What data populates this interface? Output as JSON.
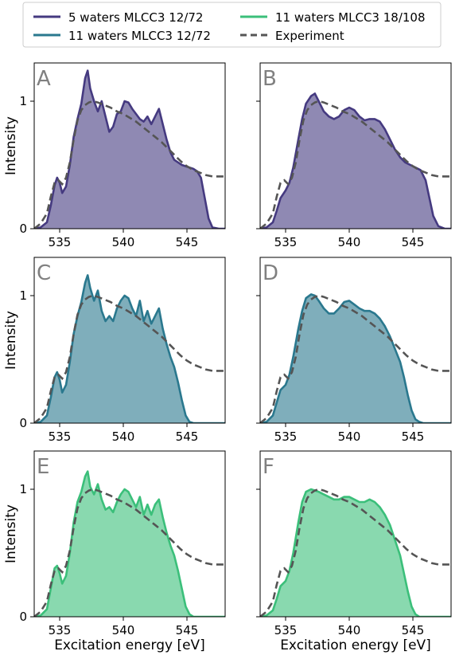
{
  "chart_data": {
    "type": "area",
    "legend": {
      "placement": "top",
      "entries": [
        {
          "label": "5 waters MLCC3 12/72",
          "color": "#453a80",
          "style": "solid"
        },
        {
          "label": "11 waters MLCC3 12/72",
          "color": "#2a788e",
          "style": "solid"
        },
        {
          "label": "11 waters MLCC3 18/108",
          "color": "#3bbf7a",
          "style": "solid"
        },
        {
          "label": "Experiment",
          "color": "#555555",
          "style": "dashed"
        }
      ]
    },
    "xlabel": "Excitation energy [eV]",
    "ylabel": "Intensity",
    "xlim": [
      533,
      548
    ],
    "ylim": [
      0,
      1.3
    ],
    "xticks": [
      "535",
      "540",
      "545"
    ],
    "yticks": [
      "0",
      "1"
    ],
    "grid": false,
    "experiment": {
      "x": [
        533,
        533.5,
        534,
        534.3,
        534.6,
        534.9,
        535.2,
        535.5,
        535.8,
        536.1,
        536.4,
        536.7,
        537,
        537.3,
        537.6,
        538,
        538.5,
        539,
        539.5,
        540,
        540.5,
        541,
        541.5,
        542,
        542.5,
        543,
        543.5,
        544,
        544.5,
        545,
        545.5,
        546,
        546.5,
        547,
        547.5,
        548
      ],
      "y": [
        0,
        0.04,
        0.12,
        0.25,
        0.36,
        0.38,
        0.35,
        0.4,
        0.52,
        0.7,
        0.85,
        0.93,
        0.97,
        0.99,
        1.0,
        0.99,
        0.97,
        0.95,
        0.92,
        0.9,
        0.87,
        0.84,
        0.8,
        0.76,
        0.72,
        0.68,
        0.63,
        0.58,
        0.53,
        0.49,
        0.46,
        0.44,
        0.42,
        0.41,
        0.41,
        0.41
      ]
    },
    "panels": [
      {
        "label": "A",
        "color": "#453a80",
        "show_ylabel": true,
        "show_xlabel": false,
        "x": [
          533,
          533.5,
          534,
          534.3,
          534.6,
          534.8,
          535,
          535.2,
          535.5,
          535.8,
          536.1,
          536.4,
          536.7,
          537,
          537.2,
          537.4,
          537.7,
          538,
          538.3,
          538.6,
          538.9,
          539.2,
          539.5,
          539.8,
          540.1,
          540.4,
          540.7,
          541,
          541.3,
          541.6,
          541.9,
          542.2,
          542.5,
          542.8,
          543.1,
          543.4,
          543.7,
          544,
          544.3,
          544.6,
          544.9,
          545.2,
          545.5,
          545.8,
          546.1,
          546.4,
          546.7,
          547,
          547.5,
          548
        ],
        "y": [
          0,
          0.01,
          0.05,
          0.18,
          0.34,
          0.4,
          0.36,
          0.28,
          0.33,
          0.5,
          0.72,
          0.86,
          0.98,
          1.18,
          1.24,
          1.1,
          1.0,
          0.92,
          1.0,
          0.88,
          0.76,
          0.8,
          0.9,
          0.92,
          1.0,
          0.99,
          0.94,
          0.9,
          0.86,
          0.84,
          0.88,
          0.82,
          0.88,
          0.94,
          0.82,
          0.7,
          0.6,
          0.54,
          0.52,
          0.5,
          0.49,
          0.48,
          0.47,
          0.45,
          0.4,
          0.24,
          0.08,
          0.01,
          0,
          0
        ]
      },
      {
        "label": "B",
        "color": "#453a80",
        "show_ylabel": false,
        "show_xlabel": false,
        "x": [
          533,
          533.5,
          534,
          534.3,
          534.6,
          535,
          535.3,
          535.6,
          536,
          536.3,
          536.6,
          537,
          537.3,
          537.6,
          538,
          538.4,
          538.8,
          539.2,
          539.6,
          540,
          540.4,
          540.8,
          541.2,
          541.6,
          542,
          542.4,
          542.8,
          543.2,
          543.6,
          544,
          544.4,
          544.8,
          545.2,
          545.6,
          546,
          546.3,
          546.6,
          547,
          547.5,
          548
        ],
        "y": [
          0,
          0.01,
          0.05,
          0.14,
          0.24,
          0.3,
          0.36,
          0.48,
          0.7,
          0.86,
          0.98,
          1.04,
          1.06,
          1.0,
          0.92,
          0.88,
          0.86,
          0.88,
          0.93,
          0.95,
          0.93,
          0.88,
          0.85,
          0.86,
          0.86,
          0.84,
          0.78,
          0.7,
          0.62,
          0.56,
          0.52,
          0.5,
          0.48,
          0.46,
          0.38,
          0.24,
          0.1,
          0.02,
          0,
          0
        ]
      },
      {
        "label": "C",
        "color": "#2a788e",
        "show_ylabel": true,
        "show_xlabel": false,
        "x": [
          533,
          533.5,
          534,
          534.3,
          534.6,
          534.8,
          535,
          535.2,
          535.5,
          535.8,
          536.1,
          536.4,
          536.7,
          537,
          537.2,
          537.4,
          537.7,
          538,
          538.3,
          538.6,
          538.9,
          539.2,
          539.5,
          539.8,
          540.1,
          540.4,
          540.7,
          541,
          541.3,
          541.6,
          541.9,
          542.2,
          542.5,
          542.8,
          543.1,
          543.4,
          543.7,
          544,
          544.3,
          544.6,
          544.9,
          545.2,
          545.5,
          545.8,
          546.1,
          546.4,
          546.7,
          547,
          547.5,
          548
        ],
        "y": [
          0,
          0.01,
          0.06,
          0.2,
          0.36,
          0.4,
          0.34,
          0.24,
          0.3,
          0.48,
          0.7,
          0.84,
          0.95,
          1.1,
          1.16,
          1.06,
          0.96,
          1.04,
          0.88,
          0.8,
          0.84,
          0.8,
          0.9,
          0.96,
          1.0,
          0.98,
          0.9,
          0.84,
          0.96,
          0.8,
          0.88,
          0.78,
          0.84,
          0.9,
          0.74,
          0.62,
          0.52,
          0.44,
          0.32,
          0.18,
          0.06,
          0.01,
          0,
          0,
          0,
          0,
          0,
          0,
          0,
          0
        ]
      },
      {
        "label": "D",
        "color": "#2a788e",
        "show_ylabel": false,
        "show_xlabel": false,
        "x": [
          533,
          533.5,
          534,
          534.3,
          534.6,
          535,
          535.3,
          535.6,
          536,
          536.3,
          536.6,
          537,
          537.3,
          537.6,
          538,
          538.4,
          538.8,
          539.2,
          539.6,
          540,
          540.4,
          540.8,
          541.2,
          541.6,
          542,
          542.4,
          542.8,
          543.2,
          543.6,
          544,
          544.3,
          544.6,
          544.9,
          545.2,
          545.5,
          545.8,
          546.1,
          546.5,
          547,
          548
        ],
        "y": [
          0,
          0.01,
          0.06,
          0.16,
          0.26,
          0.3,
          0.38,
          0.52,
          0.74,
          0.88,
          0.98,
          1.01,
          1.0,
          0.96,
          0.9,
          0.86,
          0.86,
          0.9,
          0.95,
          0.96,
          0.93,
          0.9,
          0.88,
          0.88,
          0.86,
          0.82,
          0.76,
          0.68,
          0.58,
          0.48,
          0.36,
          0.22,
          0.1,
          0.03,
          0.01,
          0,
          0,
          0,
          0,
          0
        ]
      },
      {
        "label": "E",
        "color": "#3bbf7a",
        "show_ylabel": true,
        "show_xlabel": true,
        "x": [
          533,
          533.5,
          534,
          534.3,
          534.6,
          534.8,
          535,
          535.2,
          535.5,
          535.8,
          536.1,
          536.4,
          536.7,
          537,
          537.2,
          537.4,
          537.7,
          538,
          538.3,
          538.6,
          538.9,
          539.2,
          539.5,
          539.8,
          540.1,
          540.4,
          540.7,
          541,
          541.3,
          541.6,
          541.9,
          542.2,
          542.5,
          542.8,
          543.1,
          543.4,
          543.7,
          544,
          544.3,
          544.6,
          544.9,
          545.2,
          545.5,
          545.8,
          546.1,
          546.4,
          546.7,
          547,
          547.5,
          548
        ],
        "y": [
          0,
          0.01,
          0.06,
          0.22,
          0.38,
          0.4,
          0.34,
          0.26,
          0.32,
          0.5,
          0.74,
          0.9,
          0.98,
          1.1,
          1.14,
          1.02,
          0.96,
          1.04,
          0.92,
          0.84,
          0.86,
          0.82,
          0.9,
          0.96,
          1.0,
          0.98,
          0.92,
          0.86,
          0.94,
          0.8,
          0.88,
          0.8,
          0.88,
          0.92,
          0.78,
          0.66,
          0.56,
          0.48,
          0.36,
          0.22,
          0.08,
          0.02,
          0,
          0,
          0,
          0,
          0,
          0,
          0,
          0
        ]
      },
      {
        "label": "F",
        "color": "#3bbf7a",
        "show_ylabel": false,
        "show_xlabel": true,
        "x": [
          533,
          533.5,
          534,
          534.3,
          534.6,
          535,
          535.3,
          535.6,
          536,
          536.3,
          536.6,
          537,
          537.3,
          537.6,
          538,
          538.4,
          538.8,
          539.2,
          539.6,
          540,
          540.4,
          540.8,
          541.2,
          541.6,
          542,
          542.4,
          542.8,
          543.2,
          543.6,
          544,
          544.3,
          544.6,
          544.9,
          545.2,
          545.5,
          545.8,
          546.1,
          546.5,
          547,
          548
        ],
        "y": [
          0,
          0.01,
          0.05,
          0.14,
          0.24,
          0.28,
          0.36,
          0.5,
          0.74,
          0.9,
          0.98,
          1.0,
          0.99,
          0.98,
          0.96,
          0.94,
          0.92,
          0.92,
          0.94,
          0.94,
          0.92,
          0.9,
          0.9,
          0.92,
          0.9,
          0.86,
          0.8,
          0.72,
          0.6,
          0.48,
          0.34,
          0.2,
          0.08,
          0.02,
          0,
          0,
          0,
          0,
          0,
          0
        ]
      }
    ]
  }
}
